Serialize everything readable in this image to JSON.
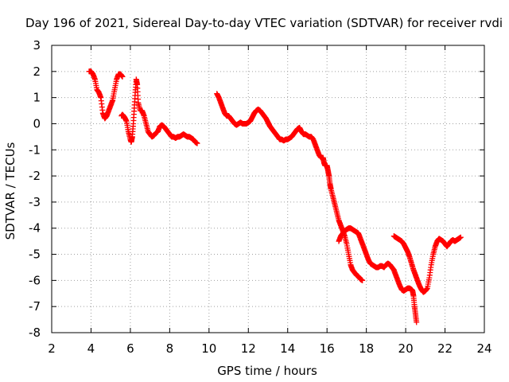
{
  "chart_data": {
    "type": "scatter",
    "title": "Day 196 of 2021, Sidereal Day-to-day VTEC variation (SDTVAR) for receiver rvdi",
    "xlabel": "GPS time / hours",
    "ylabel": "SDTVAR / TECUs",
    "xlim": [
      2,
      24
    ],
    "ylim": [
      -8,
      3
    ],
    "xticks": [
      2,
      4,
      6,
      8,
      10,
      12,
      14,
      16,
      18,
      20,
      22,
      24
    ],
    "yticks": [
      3,
      2,
      1,
      0,
      -1,
      -2,
      -3,
      -4,
      -5,
      -6,
      -7,
      -8
    ],
    "grid": true,
    "marker": "+",
    "color": "#ff0000",
    "series": [
      {
        "name": "segment-1",
        "points": [
          [
            3.9,
            2.0
          ],
          [
            4.0,
            2.0
          ],
          [
            4.1,
            1.9
          ],
          [
            4.2,
            1.7
          ],
          [
            4.3,
            1.3
          ],
          [
            4.4,
            1.2
          ],
          [
            4.5,
            1.0
          ],
          [
            4.6,
            0.4
          ],
          [
            4.7,
            0.2
          ],
          [
            4.8,
            0.3
          ],
          [
            4.9,
            0.5
          ],
          [
            5.0,
            0.7
          ],
          [
            5.1,
            0.9
          ],
          [
            5.2,
            1.3
          ],
          [
            5.3,
            1.7
          ],
          [
            5.4,
            1.9
          ],
          [
            5.5,
            1.9
          ],
          [
            5.6,
            1.8
          ]
        ]
      },
      {
        "name": "segment-2",
        "points": [
          [
            5.55,
            0.3
          ],
          [
            5.6,
            0.35
          ],
          [
            5.7,
            0.25
          ],
          [
            5.8,
            0.1
          ],
          [
            5.9,
            -0.3
          ],
          [
            6.0,
            -0.6
          ],
          [
            6.05,
            -0.7
          ],
          [
            6.1,
            -0.5
          ],
          [
            6.15,
            0.0
          ],
          [
            6.2,
            0.6
          ],
          [
            6.25,
            1.2
          ],
          [
            6.3,
            1.7
          ],
          [
            6.35,
            1.5
          ],
          [
            6.4,
            0.8
          ],
          [
            6.5,
            0.5
          ],
          [
            6.6,
            0.5
          ],
          [
            6.7,
            0.3
          ],
          [
            6.8,
            0.0
          ],
          [
            6.9,
            -0.3
          ],
          [
            7.0,
            -0.4
          ],
          [
            7.1,
            -0.5
          ],
          [
            7.2,
            -0.45
          ],
          [
            7.3,
            -0.35
          ],
          [
            7.4,
            -0.3
          ],
          [
            7.5,
            -0.1
          ],
          [
            7.6,
            -0.05
          ],
          [
            7.7,
            -0.1
          ],
          [
            7.8,
            -0.2
          ],
          [
            7.9,
            -0.3
          ],
          [
            8.0,
            -0.4
          ],
          [
            8.1,
            -0.5
          ],
          [
            8.2,
            -0.5
          ],
          [
            8.3,
            -0.55
          ],
          [
            8.4,
            -0.5
          ],
          [
            8.5,
            -0.5
          ],
          [
            8.6,
            -0.45
          ],
          [
            8.7,
            -0.4
          ],
          [
            8.8,
            -0.45
          ],
          [
            8.9,
            -0.5
          ],
          [
            9.0,
            -0.5
          ],
          [
            9.1,
            -0.55
          ],
          [
            9.2,
            -0.6
          ],
          [
            9.3,
            -0.7
          ],
          [
            9.4,
            -0.75
          ]
        ]
      },
      {
        "name": "segment-3",
        "points": [
          [
            10.4,
            1.15
          ],
          [
            10.5,
            1.0
          ],
          [
            10.6,
            0.8
          ],
          [
            10.7,
            0.6
          ],
          [
            10.8,
            0.4
          ],
          [
            10.9,
            0.3
          ],
          [
            11.0,
            0.3
          ],
          [
            11.1,
            0.2
          ],
          [
            11.2,
            0.1
          ],
          [
            11.3,
            0.0
          ],
          [
            11.4,
            -0.05
          ],
          [
            11.5,
            0.0
          ],
          [
            11.6,
            0.05
          ],
          [
            11.7,
            0.0
          ],
          [
            11.8,
            0.0
          ],
          [
            11.9,
            0.0
          ],
          [
            12.0,
            0.05
          ],
          [
            12.1,
            0.1
          ],
          [
            12.2,
            0.25
          ],
          [
            12.3,
            0.4
          ],
          [
            12.4,
            0.5
          ],
          [
            12.5,
            0.55
          ],
          [
            12.6,
            0.5
          ],
          [
            12.7,
            0.4
          ],
          [
            12.8,
            0.3
          ],
          [
            12.9,
            0.2
          ],
          [
            13.0,
            0.05
          ],
          [
            13.1,
            -0.1
          ],
          [
            13.2,
            -0.2
          ],
          [
            13.3,
            -0.3
          ],
          [
            13.4,
            -0.4
          ],
          [
            13.5,
            -0.5
          ],
          [
            13.6,
            -0.6
          ],
          [
            13.7,
            -0.6
          ],
          [
            13.8,
            -0.65
          ],
          [
            13.9,
            -0.6
          ],
          [
            14.0,
            -0.6
          ],
          [
            14.1,
            -0.55
          ],
          [
            14.2,
            -0.5
          ],
          [
            14.3,
            -0.4
          ],
          [
            14.4,
            -0.3
          ],
          [
            14.5,
            -0.2
          ],
          [
            14.6,
            -0.15
          ],
          [
            14.7,
            -0.3
          ],
          [
            14.8,
            -0.4
          ],
          [
            14.9,
            -0.4
          ],
          [
            15.0,
            -0.45
          ],
          [
            15.1,
            -0.5
          ],
          [
            15.2,
            -0.5
          ],
          [
            15.3,
            -0.6
          ],
          [
            15.4,
            -0.8
          ],
          [
            15.5,
            -1.0
          ],
          [
            15.6,
            -1.2
          ],
          [
            15.7,
            -1.3
          ],
          [
            15.8,
            -1.3
          ],
          [
            15.85,
            -1.5
          ],
          [
            15.9,
            -1.6
          ],
          [
            16.0,
            -1.6
          ],
          [
            16.05,
            -1.8
          ],
          [
            16.1,
            -2.0
          ],
          [
            16.15,
            -2.3
          ],
          [
            16.2,
            -2.5
          ],
          [
            16.3,
            -2.8
          ],
          [
            16.4,
            -3.1
          ],
          [
            16.5,
            -3.4
          ],
          [
            16.6,
            -3.7
          ],
          [
            16.7,
            -3.9
          ],
          [
            16.8,
            -4.1
          ],
          [
            16.9,
            -4.3
          ],
          [
            17.0,
            -4.6
          ],
          [
            17.1,
            -5.0
          ],
          [
            17.2,
            -5.4
          ],
          [
            17.3,
            -5.6
          ],
          [
            17.4,
            -5.7
          ],
          [
            17.5,
            -5.8
          ],
          [
            17.6,
            -5.85
          ],
          [
            17.7,
            -5.95
          ],
          [
            17.8,
            -6.0
          ]
        ]
      },
      {
        "name": "segment-4",
        "points": [
          [
            16.6,
            -4.5
          ],
          [
            16.7,
            -4.3
          ],
          [
            16.8,
            -4.2
          ],
          [
            16.9,
            -4.1
          ],
          [
            17.0,
            -4.05
          ],
          [
            17.1,
            -4.0
          ],
          [
            17.2,
            -4.0
          ],
          [
            17.3,
            -4.05
          ],
          [
            17.4,
            -4.1
          ],
          [
            17.5,
            -4.15
          ],
          [
            17.6,
            -4.2
          ],
          [
            17.7,
            -4.4
          ],
          [
            17.8,
            -4.6
          ],
          [
            17.9,
            -4.8
          ],
          [
            18.0,
            -5.0
          ],
          [
            18.1,
            -5.2
          ],
          [
            18.2,
            -5.35
          ],
          [
            18.3,
            -5.4
          ],
          [
            18.4,
            -5.45
          ],
          [
            18.5,
            -5.5
          ],
          [
            18.6,
            -5.5
          ],
          [
            18.7,
            -5.45
          ],
          [
            18.8,
            -5.45
          ],
          [
            18.9,
            -5.5
          ],
          [
            19.0,
            -5.4
          ],
          [
            19.1,
            -5.35
          ],
          [
            19.2,
            -5.4
          ],
          [
            19.3,
            -5.5
          ],
          [
            19.4,
            -5.6
          ],
          [
            19.5,
            -5.8
          ],
          [
            19.6,
            -6.0
          ],
          [
            19.7,
            -6.2
          ],
          [
            19.8,
            -6.35
          ],
          [
            19.9,
            -6.4
          ],
          [
            20.0,
            -6.35
          ],
          [
            20.1,
            -6.3
          ],
          [
            20.2,
            -6.3
          ],
          [
            20.3,
            -6.35
          ],
          [
            20.35,
            -6.4
          ],
          [
            20.4,
            -6.6
          ],
          [
            20.45,
            -7.0
          ],
          [
            20.5,
            -7.3
          ],
          [
            20.55,
            -7.6
          ]
        ]
      },
      {
        "name": "segment-5",
        "points": [
          [
            19.4,
            -4.3
          ],
          [
            19.5,
            -4.35
          ],
          [
            19.6,
            -4.4
          ],
          [
            19.7,
            -4.45
          ],
          [
            19.8,
            -4.5
          ],
          [
            19.9,
            -4.6
          ],
          [
            20.0,
            -4.75
          ],
          [
            20.1,
            -4.9
          ],
          [
            20.2,
            -5.1
          ],
          [
            20.3,
            -5.35
          ],
          [
            20.4,
            -5.6
          ],
          [
            20.5,
            -5.8
          ],
          [
            20.6,
            -6.0
          ],
          [
            20.7,
            -6.2
          ],
          [
            20.8,
            -6.35
          ],
          [
            20.9,
            -6.45
          ],
          [
            21.0,
            -6.4
          ],
          [
            21.1,
            -6.3
          ],
          [
            21.2,
            -5.9
          ],
          [
            21.3,
            -5.4
          ],
          [
            21.4,
            -5.0
          ],
          [
            21.5,
            -4.7
          ],
          [
            21.6,
            -4.5
          ],
          [
            21.7,
            -4.4
          ],
          [
            21.8,
            -4.45
          ],
          [
            21.9,
            -4.5
          ],
          [
            22.0,
            -4.6
          ],
          [
            22.1,
            -4.7
          ],
          [
            22.2,
            -4.6
          ],
          [
            22.3,
            -4.5
          ],
          [
            22.4,
            -4.45
          ],
          [
            22.5,
            -4.5
          ],
          [
            22.6,
            -4.45
          ],
          [
            22.7,
            -4.4
          ],
          [
            22.8,
            -4.35
          ]
        ]
      }
    ]
  }
}
